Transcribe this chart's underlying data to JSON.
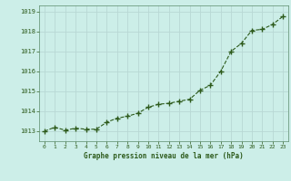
{
  "x": [
    0,
    1,
    2,
    3,
    4,
    5,
    6,
    7,
    8,
    9,
    10,
    11,
    12,
    13,
    14,
    15,
    16,
    17,
    18,
    19,
    20,
    21,
    22,
    23
  ],
  "y": [
    1013.0,
    1013.2,
    1013.05,
    1013.15,
    1013.1,
    1013.1,
    1013.45,
    1013.65,
    1013.75,
    1013.9,
    1014.2,
    1014.35,
    1014.4,
    1014.5,
    1014.6,
    1015.05,
    1015.3,
    1016.0,
    1017.0,
    1017.4,
    1018.05,
    1018.1,
    1018.35,
    1018.75
  ],
  "ylim": [
    1012.5,
    1019.3
  ],
  "yticks": [
    1013,
    1014,
    1015,
    1016,
    1017,
    1018,
    1019
  ],
  "xlabel": "Graphe pression niveau de la mer (hPa)",
  "line_color": "#2d5a1b",
  "marker_color": "#2d5a1b",
  "bg_color": "#cceee8",
  "grid_color": "#b8d8d4",
  "spine_color": "#5a8a6a",
  "title_color": "#2d5a1b"
}
